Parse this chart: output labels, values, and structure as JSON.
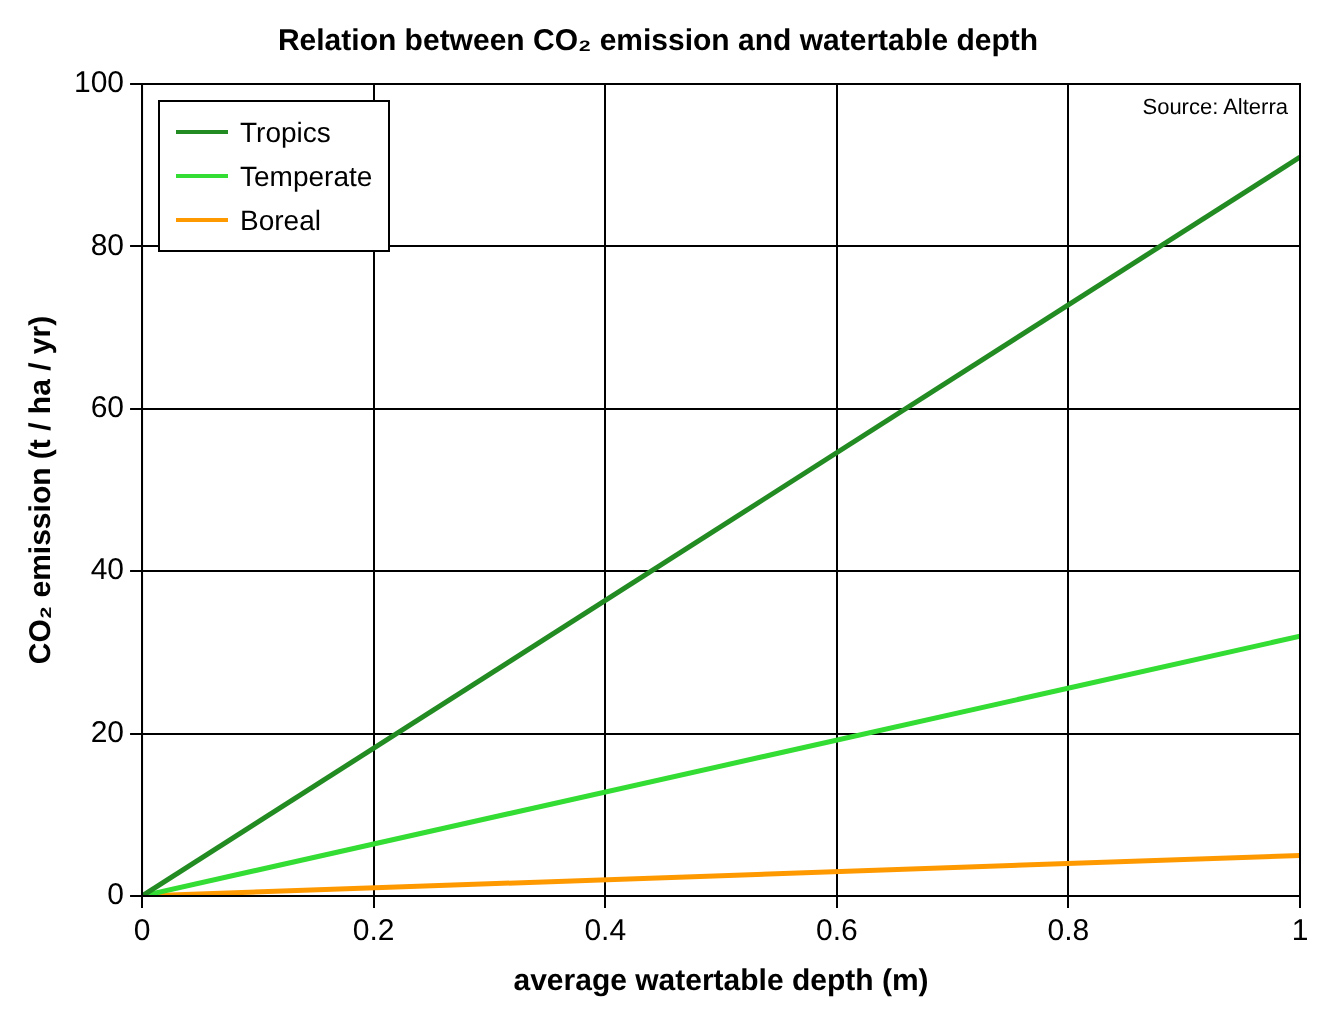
{
  "chart_data": {
    "type": "line",
    "title": "Relation between CO₂ emission and watertable depth",
    "xlabel": "average watertable depth (m)",
    "ylabel": "CO₂ emission (t / ha / yr)",
    "annotations": [
      "Source: Alterra"
    ],
    "x": [
      0,
      1
    ],
    "series": [
      {
        "name": "Tropics",
        "color": "#228b22",
        "values": [
          0,
          91
        ]
      },
      {
        "name": "Temperate",
        "color": "#33dd33",
        "values": [
          0,
          32
        ]
      },
      {
        "name": "Boreal",
        "color": "#ff9900",
        "values": [
          0,
          5
        ]
      }
    ],
    "xlim": [
      0,
      1
    ],
    "xticks": [
      0,
      0.2,
      0.4,
      0.6,
      0.8,
      1
    ],
    "ylim": [
      0,
      100
    ],
    "yticks": [
      0,
      20,
      40,
      60,
      80,
      100
    ],
    "grid": true,
    "legend": "top left",
    "marker": "none",
    "line_style": "solid"
  }
}
